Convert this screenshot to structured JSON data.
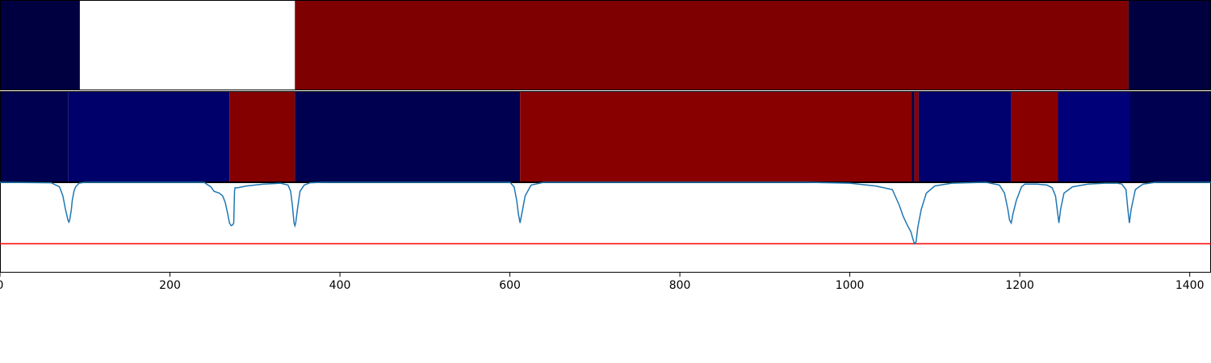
{
  "chart_data": [
    {
      "type": "heatmap",
      "segments": [
        {
          "start": 0,
          "end": 94,
          "color": "#000040"
        },
        {
          "start": 94,
          "end": 347,
          "color": "#ffffff"
        },
        {
          "start": 347,
          "end": 1328,
          "color": "#7f0000"
        },
        {
          "start": 1328,
          "end": 1425,
          "color": "#000040"
        }
      ]
    },
    {
      "type": "heatmap",
      "segments": [
        {
          "start": 0,
          "end": 80,
          "color": "#000050"
        },
        {
          "start": 80,
          "end": 270,
          "color": "#00006a"
        },
        {
          "start": 270,
          "end": 347,
          "color": "#840000"
        },
        {
          "start": 347,
          "end": 612,
          "color": "#000050"
        },
        {
          "start": 612,
          "end": 1073,
          "color": "#880000"
        },
        {
          "start": 1073,
          "end": 1076,
          "color": "#000050"
        },
        {
          "start": 1076,
          "end": 1081,
          "color": "#880000"
        },
        {
          "start": 1081,
          "end": 1190,
          "color": "#00006e"
        },
        {
          "start": 1190,
          "end": 1245,
          "color": "#880000"
        },
        {
          "start": 1245,
          "end": 1330,
          "color": "#000078"
        },
        {
          "start": 1330,
          "end": 1425,
          "color": "#000050"
        }
      ]
    },
    {
      "type": "line",
      "xlim": [
        0,
        1425
      ],
      "ylim": [
        -1.0,
        0.0
      ],
      "xticks": [
        0,
        200,
        400,
        600,
        800,
        1000,
        1200,
        1400
      ],
      "threshold": -0.68,
      "line_color": "#1f77b4",
      "threshold_color": "#ff0000",
      "series": [
        {
          "x": [
            0,
            60,
            70,
            74,
            77,
            79,
            80,
            81,
            82,
            84,
            85,
            87,
            89,
            93,
            100,
            240,
            248,
            252,
            258,
            262,
            265,
            268,
            270,
            272,
            274,
            275,
            276,
            276.5,
            280,
            290,
            300,
            310,
            320,
            330,
            339,
            342,
            344,
            346,
            347,
            348,
            350,
            353,
            358,
            365,
            380,
            600,
            605,
            608,
            610,
            612,
            614,
            618,
            625,
            640,
            950,
            1000,
            1030,
            1050,
            1058,
            1063,
            1068,
            1072,
            1074,
            1076,
            1078,
            1080,
            1084,
            1090,
            1100,
            1120,
            1160,
            1176,
            1182,
            1186,
            1188,
            1190,
            1192,
            1196,
            1202,
            1206,
            1210,
            1220,
            1232,
            1238,
            1242,
            1244,
            1246,
            1248,
            1252,
            1262,
            1280,
            1300,
            1315,
            1320,
            1325,
            1327,
            1329,
            1331,
            1336,
            1345,
            1360,
            1425
          ],
          "y": [
            0,
            -0.005,
            -0.05,
            -0.15,
            -0.3,
            -0.38,
            -0.42,
            -0.44,
            -0.42,
            -0.3,
            -0.2,
            -0.1,
            -0.05,
            -0.01,
            0,
            0,
            -0.05,
            -0.1,
            -0.12,
            -0.15,
            -0.22,
            -0.35,
            -0.45,
            -0.48,
            -0.47,
            -0.45,
            -0.1,
            -0.06,
            -0.06,
            -0.04,
            -0.03,
            -0.02,
            -0.015,
            -0.01,
            -0.03,
            -0.1,
            -0.25,
            -0.45,
            -0.48,
            -0.45,
            -0.3,
            -0.1,
            -0.03,
            -0.005,
            0,
            0,
            -0.05,
            -0.2,
            -0.35,
            -0.45,
            -0.35,
            -0.15,
            -0.03,
            0,
            0,
            -0.01,
            -0.04,
            -0.08,
            -0.25,
            -0.38,
            -0.48,
            -0.55,
            -0.62,
            -0.68,
            -0.66,
            -0.5,
            -0.3,
            -0.12,
            -0.04,
            -0.01,
            0,
            -0.03,
            -0.12,
            -0.3,
            -0.42,
            -0.45,
            -0.35,
            -0.2,
            -0.05,
            -0.02,
            -0.02,
            -0.02,
            -0.03,
            -0.06,
            -0.15,
            -0.3,
            -0.45,
            -0.3,
            -0.12,
            -0.05,
            -0.02,
            -0.01,
            -0.01,
            -0.02,
            -0.08,
            -0.28,
            -0.45,
            -0.3,
            -0.08,
            -0.02,
            0,
            0
          ]
        }
      ]
    }
  ]
}
